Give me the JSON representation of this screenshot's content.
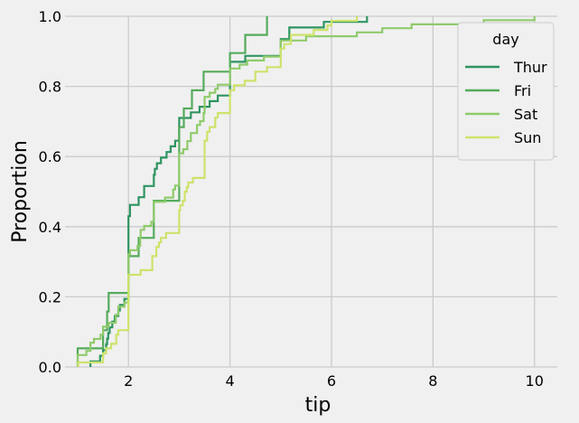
{
  "chart_data": {
    "type": "line",
    "subtype": "ecdf-step",
    "xlabel": "tip",
    "ylabel": "Proportion",
    "xlim": [
      0.75,
      10.45
    ],
    "ylim": [
      0,
      1.0
    ],
    "x_ticks": [
      2,
      4,
      6,
      8,
      10
    ],
    "y_ticks": [
      "0.0",
      "0.2",
      "0.4",
      "0.6",
      "0.8",
      "1.0"
    ],
    "grid": true,
    "legend": {
      "title": "day",
      "position": "top-right"
    },
    "series": [
      {
        "name": "Thur",
        "color": "#2e9461",
        "points": [
          [
            1.25,
            0.016
          ],
          [
            1.44,
            0.032
          ],
          [
            1.5,
            0.048
          ],
          [
            1.56,
            0.065
          ],
          [
            1.58,
            0.081
          ],
          [
            1.6,
            0.097
          ],
          [
            1.63,
            0.113
          ],
          [
            1.68,
            0.129
          ],
          [
            1.73,
            0.145
          ],
          [
            1.8,
            0.161
          ],
          [
            1.83,
            0.177
          ],
          [
            1.92,
            0.194
          ],
          [
            2.0,
            0.43
          ],
          [
            2.03,
            0.462
          ],
          [
            2.2,
            0.484
          ],
          [
            2.31,
            0.516
          ],
          [
            2.5,
            0.548
          ],
          [
            2.52,
            0.565
          ],
          [
            2.56,
            0.581
          ],
          [
            2.64,
            0.597
          ],
          [
            2.75,
            0.613
          ],
          [
            2.83,
            0.629
          ],
          [
            2.92,
            0.645
          ],
          [
            3.0,
            0.71
          ],
          [
            3.23,
            0.726
          ],
          [
            3.4,
            0.742
          ],
          [
            3.6,
            0.758
          ],
          [
            3.76,
            0.774
          ],
          [
            4.0,
            0.87
          ],
          [
            4.3,
            0.887
          ],
          [
            5.0,
            0.935
          ],
          [
            5.17,
            0.968
          ],
          [
            5.85,
            0.984
          ],
          [
            6.7,
            1.0
          ]
        ]
      },
      {
        "name": "Fri",
        "color": "#55ab5c",
        "points": [
          [
            1.0,
            0.053
          ],
          [
            1.5,
            0.105
          ],
          [
            1.58,
            0.158
          ],
          [
            1.61,
            0.211
          ],
          [
            2.0,
            0.316
          ],
          [
            2.2,
            0.368
          ],
          [
            2.5,
            0.474
          ],
          [
            3.0,
            0.684
          ],
          [
            3.09,
            0.737
          ],
          [
            3.25,
            0.789
          ],
          [
            3.48,
            0.842
          ],
          [
            4.0,
            0.895
          ],
          [
            4.3,
            0.947
          ],
          [
            4.73,
            1.0
          ]
        ]
      },
      {
        "name": "Sat",
        "color": "#8fcb6b",
        "points": [
          [
            1.0,
            0.034
          ],
          [
            1.17,
            0.046
          ],
          [
            1.25,
            0.069
          ],
          [
            1.32,
            0.08
          ],
          [
            1.45,
            0.092
          ],
          [
            1.5,
            0.115
          ],
          [
            1.61,
            0.126
          ],
          [
            1.75,
            0.149
          ],
          [
            1.8,
            0.172
          ],
          [
            1.92,
            0.184
          ],
          [
            2.0,
            0.322
          ],
          [
            2.03,
            0.333
          ],
          [
            2.18,
            0.345
          ],
          [
            2.23,
            0.368
          ],
          [
            2.24,
            0.391
          ],
          [
            2.31,
            0.402
          ],
          [
            2.45,
            0.414
          ],
          [
            2.5,
            0.471
          ],
          [
            2.72,
            0.483
          ],
          [
            2.88,
            0.506
          ],
          [
            2.92,
            0.517
          ],
          [
            3.0,
            0.609
          ],
          [
            3.08,
            0.621
          ],
          [
            3.16,
            0.644
          ],
          [
            3.23,
            0.667
          ],
          [
            3.35,
            0.69
          ],
          [
            3.41,
            0.701
          ],
          [
            3.48,
            0.724
          ],
          [
            3.5,
            0.77
          ],
          [
            3.6,
            0.782
          ],
          [
            3.71,
            0.793
          ],
          [
            3.76,
            0.805
          ],
          [
            4.0,
            0.851
          ],
          [
            4.19,
            0.862
          ],
          [
            4.34,
            0.874
          ],
          [
            4.67,
            0.885
          ],
          [
            5.0,
            0.931
          ],
          [
            5.5,
            0.943
          ],
          [
            6.5,
            0.954
          ],
          [
            7.0,
            0.966
          ],
          [
            7.58,
            0.977
          ],
          [
            9.0,
            0.989
          ],
          [
            10.0,
            1.0
          ]
        ]
      },
      {
        "name": "Sun",
        "color": "#cde36b",
        "points": [
          [
            1.01,
            0.013
          ],
          [
            1.5,
            0.039
          ],
          [
            1.56,
            0.053
          ],
          [
            1.66,
            0.066
          ],
          [
            1.76,
            0.092
          ],
          [
            1.8,
            0.105
          ],
          [
            2.0,
            0.263
          ],
          [
            2.24,
            0.276
          ],
          [
            2.47,
            0.316
          ],
          [
            2.55,
            0.342
          ],
          [
            2.6,
            0.355
          ],
          [
            2.64,
            0.368
          ],
          [
            2.74,
            0.382
          ],
          [
            3.0,
            0.447
          ],
          [
            3.02,
            0.461
          ],
          [
            3.07,
            0.474
          ],
          [
            3.11,
            0.5
          ],
          [
            3.15,
            0.513
          ],
          [
            3.18,
            0.526
          ],
          [
            3.27,
            0.539
          ],
          [
            3.5,
            0.645
          ],
          [
            3.55,
            0.671
          ],
          [
            3.6,
            0.684
          ],
          [
            3.71,
            0.711
          ],
          [
            3.76,
            0.724
          ],
          [
            4.0,
            0.789
          ],
          [
            4.08,
            0.803
          ],
          [
            4.29,
            0.816
          ],
          [
            4.5,
            0.842
          ],
          [
            4.73,
            0.855
          ],
          [
            5.0,
            0.908
          ],
          [
            5.07,
            0.921
          ],
          [
            5.2,
            0.947
          ],
          [
            5.65,
            0.961
          ],
          [
            5.92,
            0.974
          ],
          [
            6.0,
            0.987
          ],
          [
            6.5,
            1.0
          ]
        ]
      }
    ]
  }
}
